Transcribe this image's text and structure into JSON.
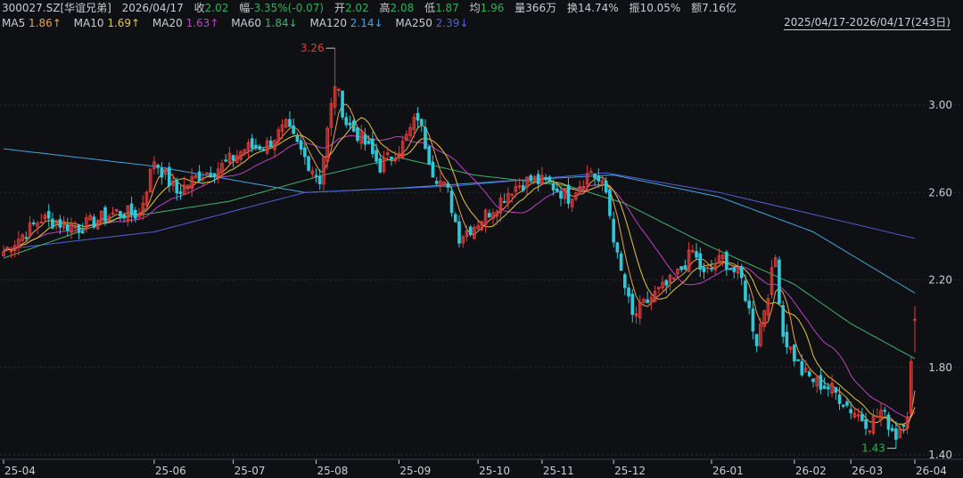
{
  "header": {
    "symbol": "300027.SZ[华谊兄弟]",
    "date": "2026/04/17",
    "close_label": "收",
    "close_value": "2.02",
    "change_label": "幅",
    "change_value": "-3.35%(-0.07)",
    "open_label": "开",
    "open_value": "2.02",
    "high_label": "高",
    "high_value": "2.08",
    "low_label": "低",
    "low_value": "1.87",
    "avg_label": "均",
    "avg_value": "1.96",
    "volume_label": "量",
    "volume_value": "366万",
    "turnover_label": "换",
    "turnover_value": "14.74%",
    "amplitude_label": "振",
    "amplitude_value": "10.05%",
    "amount_label": "额",
    "amount_value": "7.16亿"
  },
  "ma_legend": [
    {
      "name": "MA5",
      "value": "1.86↑",
      "color": "#f0a040"
    },
    {
      "name": "MA10",
      "value": "1.69↑",
      "color": "#e6c83c"
    },
    {
      "name": "MA20",
      "value": "1.63↑",
      "color": "#c040c8"
    },
    {
      "name": "MA60",
      "value": "1.84↓",
      "color": "#3cb46e"
    },
    {
      "name": "MA120",
      "value": "2.14↓",
      "color": "#3ea6e0"
    },
    {
      "name": "MA250",
      "value": "2.39↓",
      "color": "#5560d8"
    }
  ],
  "range_label": "2025/04/17-2026/04/17(243日)",
  "colors": {
    "up": "#e03c3c",
    "down": "#2fc8d8",
    "grid": "#2a2c31",
    "axis_text": "#c9ccd2",
    "max_label": "#e03c3c",
    "min_label": "#25b35a"
  },
  "chart_data": {
    "type": "candlestick",
    "y_ticks": [
      "3.00",
      "2.60",
      "2.20",
      "1.80",
      "1.40"
    ],
    "y_tick_values": [
      3.0,
      2.6,
      2.2,
      1.8,
      1.4
    ],
    "ylim": [
      1.36,
      3.31
    ],
    "x_ticks": [
      "25-04",
      "25-06",
      "25-07",
      "25-08",
      "25-09",
      "25-10",
      "25-11",
      "25-12",
      "26-01",
      "26-02",
      "26-03",
      "26-04"
    ],
    "x_tick_index": [
      0,
      40,
      61,
      83,
      105,
      126,
      143,
      162,
      188,
      210,
      225,
      242
    ],
    "max_annotation": {
      "label": "3.26",
      "index": 88
    },
    "min_annotation": {
      "label": "1.43",
      "index": 237
    },
    "anchors": [
      [
        0,
        2.33
      ],
      [
        10,
        2.48
      ],
      [
        20,
        2.44
      ],
      [
        30,
        2.51
      ],
      [
        36,
        2.5
      ],
      [
        40,
        2.75
      ],
      [
        46,
        2.6
      ],
      [
        52,
        2.68
      ],
      [
        58,
        2.72
      ],
      [
        64,
        2.8
      ],
      [
        70,
        2.82
      ],
      [
        75,
        2.9
      ],
      [
        80,
        2.76
      ],
      [
        84,
        2.66
      ],
      [
        88,
        3.1
      ],
      [
        91,
        2.92
      ],
      [
        95,
        2.85
      ],
      [
        100,
        2.72
      ],
      [
        106,
        2.82
      ],
      [
        110,
        2.95
      ],
      [
        114,
        2.7
      ],
      [
        118,
        2.6
      ],
      [
        121,
        2.4
      ],
      [
        125,
        2.45
      ],
      [
        130,
        2.53
      ],
      [
        135,
        2.62
      ],
      [
        140,
        2.66
      ],
      [
        145,
        2.64
      ],
      [
        150,
        2.58
      ],
      [
        156,
        2.7
      ],
      [
        160,
        2.6
      ],
      [
        163,
        2.3
      ],
      [
        167,
        2.03
      ],
      [
        172,
        2.12
      ],
      [
        178,
        2.2
      ],
      [
        183,
        2.33
      ],
      [
        186,
        2.22
      ],
      [
        191,
        2.3
      ],
      [
        196,
        2.2
      ],
      [
        200,
        1.92
      ],
      [
        205,
        2.3
      ],
      [
        207,
        1.95
      ],
      [
        212,
        1.78
      ],
      [
        216,
        1.73
      ],
      [
        220,
        1.7
      ],
      [
        225,
        1.61
      ],
      [
        230,
        1.54
      ],
      [
        233,
        1.6
      ],
      [
        237,
        1.49
      ],
      [
        240,
        1.6
      ],
      [
        242,
        2.02
      ]
    ],
    "ma_series": [
      {
        "name": "MA120",
        "anchors": [
          [
            0,
            2.8
          ],
          [
            40,
            2.72
          ],
          [
            80,
            2.6
          ],
          [
            105,
            2.62
          ],
          [
            140,
            2.66
          ],
          [
            162,
            2.68
          ],
          [
            190,
            2.58
          ],
          [
            215,
            2.42
          ],
          [
            242,
            2.14
          ]
        ]
      },
      {
        "name": "MA250",
        "anchors": [
          [
            0,
            2.34
          ],
          [
            40,
            2.42
          ],
          [
            80,
            2.6
          ],
          [
            120,
            2.63
          ],
          [
            160,
            2.69
          ],
          [
            190,
            2.6
          ],
          [
            215,
            2.5
          ],
          [
            242,
            2.39
          ]
        ]
      },
      {
        "name": "MA60",
        "anchors": [
          [
            0,
            2.3
          ],
          [
            30,
            2.48
          ],
          [
            60,
            2.56
          ],
          [
            85,
            2.68
          ],
          [
            105,
            2.76
          ],
          [
            125,
            2.68
          ],
          [
            150,
            2.63
          ],
          [
            165,
            2.55
          ],
          [
            188,
            2.35
          ],
          [
            210,
            2.18
          ],
          [
            225,
            2.0
          ],
          [
            242,
            1.84
          ]
        ]
      }
    ]
  }
}
